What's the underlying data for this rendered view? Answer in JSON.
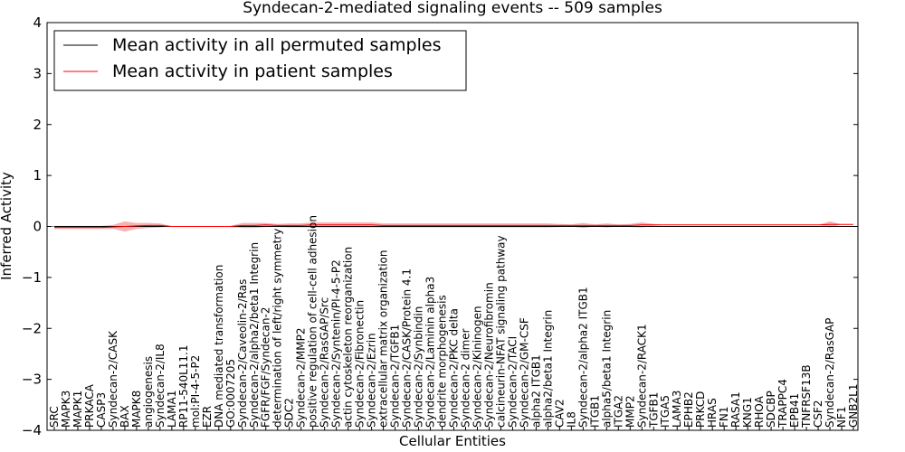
{
  "chart_data": {
    "type": "line",
    "title": "Syndecan-2-mediated signaling events -- 509 samples",
    "xlabel": "Cellular Entities",
    "ylabel": "Inferred Activity",
    "ylim": [
      -4,
      4
    ],
    "yticks": [
      -4,
      -3,
      -2,
      -1,
      0,
      1,
      2,
      3,
      4
    ],
    "ytick_labels": [
      "−4",
      "−3",
      "−2",
      "−1",
      "0",
      "1",
      "2",
      "3",
      "4"
    ],
    "grid": false,
    "legend_position": "top-left",
    "categories": [
      "SRC",
      "MAPK3",
      "MAPK1",
      "PRKACA",
      "CASP3",
      "Syndecan-2/CASK",
      "BAX",
      "MAPK8",
      "angiogenesis",
      "Syndecan-2/IL8",
      "LAMA1",
      "RP11-540L11.1",
      "mol:PI-4-5-P2",
      "EZR",
      "DNA mediated transformation",
      "GO:0007205",
      "Syndecan-2/Caveolin-2/Ras",
      "Syndecan-2/alpha2/beta1 Integrin",
      "FGFR/FGF/Syndecan-2",
      "determination of left/right symmetry",
      "SDC2",
      "Syndecan-2/MMP2",
      "positive regulation of cell-cell adhesion",
      "Syndecan-2/RasGAP/Src",
      "Syndecan-2/Syntenin/PI-4-5-P2",
      "actin cytoskeleton reorganization",
      "Syndecan-2/Fibronectin",
      "Syndecan-2/Ezrin",
      "extracellular matrix organization",
      "Syndecan-2/TGFB1",
      "Syndecan-2/CASK/Protein 4.1",
      "Syndecan-2/Synbindin",
      "Syndecan-2/Laminin alpha3",
      "dendrite morphogenesis",
      "Syndecan-2/PKC delta",
      "Syndecan-2 dimer",
      "Syndecan-2/Kininogen",
      "Syndecan-2/Neurofibromin",
      "calcineurin-NFAT signaling pathway",
      "Syndecan-2/TACI",
      "Syndecan-2/GM-CSF",
      "alpha2 ITGB1",
      "alpha2/beta1 Integrin",
      "CAV2",
      "IL8",
      "Syndecan-2/alpha2 ITGB1",
      "ITGB1",
      "alpha5/beta1 Integrin",
      "ITGA2",
      "MMP2",
      "Syndecan-2/RACK1",
      "TGFB1",
      "ITGA5",
      "LAMA3",
      "EPHB2",
      "PRKCD",
      "HRAS",
      "FN1",
      "RASA1",
      "KNG1",
      "RHOA",
      "SDCBP",
      "TRAPPC4",
      "EPB41",
      "TNFRSF13B",
      "CSF2",
      "Syndecan-2/RasGAP",
      "NF1",
      "GNB2L1"
    ],
    "series": [
      {
        "name": "Mean activity in all permuted samples",
        "color": "#000000",
        "values": [
          0.0,
          0.0,
          0.0,
          0.0,
          0.0,
          0.0,
          0.0,
          0.0,
          0.0,
          0.0,
          0.0,
          0.0,
          0.0,
          0.0,
          0.0,
          0.0,
          0.0,
          0.0,
          0.0,
          0.0,
          0.0,
          0.0,
          0.0,
          0.0,
          0.0,
          0.0,
          0.0,
          0.0,
          0.0,
          0.0,
          0.0,
          0.0,
          0.0,
          0.0,
          0.0,
          0.0,
          0.0,
          0.0,
          0.0,
          0.0,
          0.0,
          0.0,
          0.0,
          0.0,
          0.0,
          0.0,
          0.0,
          0.0,
          0.0,
          0.0,
          0.0,
          0.0,
          0.0,
          0.0,
          0.0,
          0.0,
          0.0,
          0.0,
          0.0,
          0.0,
          0.0,
          0.0,
          0.0,
          0.0,
          0.0,
          0.0,
          0.0,
          0.0,
          0.0
        ]
      },
      {
        "name": "Mean activity in patient samples",
        "color": "#ff0000",
        "values": [
          -0.02,
          -0.02,
          -0.02,
          -0.02,
          -0.02,
          -0.01,
          0.0,
          0.01,
          0.02,
          0.02,
          0.0,
          0.0,
          0.0,
          0.0,
          0.0,
          0.0,
          0.02,
          0.02,
          0.03,
          0.02,
          0.02,
          0.02,
          0.03,
          0.03,
          0.03,
          0.03,
          0.03,
          0.03,
          0.02,
          0.02,
          0.02,
          0.02,
          0.02,
          0.02,
          0.02,
          0.02,
          0.02,
          0.02,
          0.02,
          0.02,
          0.02,
          0.02,
          0.02,
          0.02,
          0.02,
          0.02,
          0.02,
          0.02,
          0.02,
          0.02,
          0.03,
          0.03,
          0.03,
          0.03,
          0.03,
          0.03,
          0.03,
          0.03,
          0.03,
          0.03,
          0.03,
          0.03,
          0.03,
          0.03,
          0.03,
          0.03,
          0.04,
          0.04,
          0.04
        ]
      }
    ],
    "band": {
      "color": "#f08080",
      "half_width": [
        0.03,
        0.03,
        0.03,
        0.03,
        0.03,
        0.04,
        0.1,
        0.06,
        0.05,
        0.04,
        0.0,
        0.0,
        0.0,
        0.0,
        0.0,
        0.01,
        0.05,
        0.05,
        0.04,
        0.03,
        0.04,
        0.04,
        0.05,
        0.05,
        0.05,
        0.05,
        0.05,
        0.05,
        0.04,
        0.04,
        0.04,
        0.04,
        0.04,
        0.04,
        0.04,
        0.04,
        0.04,
        0.04,
        0.04,
        0.04,
        0.04,
        0.04,
        0.04,
        0.03,
        0.02,
        0.05,
        0.02,
        0.04,
        0.02,
        0.03,
        0.05,
        0.02,
        0.0,
        0.0,
        0.0,
        0.0,
        0.0,
        0.0,
        0.0,
        0.0,
        0.0,
        0.0,
        0.0,
        0.0,
        0.0,
        0.0,
        0.06,
        0.0,
        0.0
      ]
    }
  }
}
